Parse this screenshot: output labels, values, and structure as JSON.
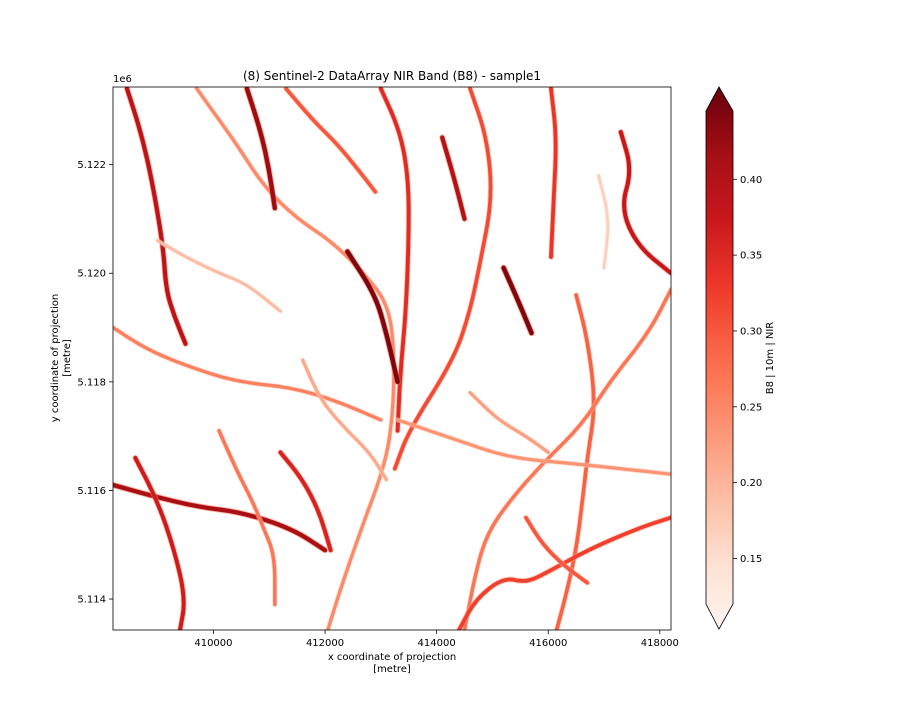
{
  "chart_data": {
    "type": "heatmap",
    "title": "(8) Sentinel-2 DataArray NIR Band (B8) - sample1",
    "xlabel": "x coordinate of projection",
    "xunit": "[metre]",
    "ylabel": "y coordinate of projection",
    "yunit": "[metre]",
    "y_offset_label": "1e6",
    "xlim": [
      408200,
      418200
    ],
    "ylim": [
      5113430,
      5123430
    ],
    "x_ticks": [
      410000,
      412000,
      414000,
      416000,
      418000
    ],
    "x_tick_labels": [
      "410000",
      "412000",
      "414000",
      "416000",
      "418000"
    ],
    "y_ticks": [
      5114000,
      5116000,
      5118000,
      5120000,
      5122000
    ],
    "y_tick_labels": [
      "5.114",
      "5.116",
      "5.118",
      "5.120",
      "5.122"
    ],
    "colorbar": {
      "label": "B8  | 10m | NIR",
      "colormap": "Reds",
      "range": [
        0.12,
        0.445
      ],
      "extend": "both",
      "ticks": [
        0.15,
        0.2,
        0.25,
        0.3,
        0.35,
        0.4
      ],
      "tick_labels": [
        "0.15",
        "0.20",
        "0.25",
        "0.30",
        "0.35",
        "0.40"
      ]
    },
    "channels": [
      {
        "points": [
          [
            408450,
            5123400
          ],
          [
            408700,
            5122600
          ],
          [
            408900,
            5121700
          ],
          [
            409100,
            5120500
          ],
          [
            409150,
            5119700
          ],
          [
            409300,
            5119200
          ],
          [
            409500,
            5118700
          ]
        ],
        "value": 0.38
      },
      {
        "points": [
          [
            408200,
            5119000
          ],
          [
            408800,
            5118600
          ],
          [
            409500,
            5118300
          ],
          [
            410400,
            5118000
          ],
          [
            411400,
            5117900
          ],
          [
            412200,
            5117650
          ],
          [
            413000,
            5117300
          ]
        ],
        "value": 0.26
      },
      {
        "points": [
          [
            409700,
            5123400
          ],
          [
            410400,
            5122400
          ],
          [
            410900,
            5121600
          ],
          [
            411500,
            5121000
          ],
          [
            412100,
            5120600
          ],
          [
            412700,
            5120000
          ],
          [
            413150,
            5119400
          ],
          [
            413250,
            5118400
          ],
          [
            413200,
            5117200
          ],
          [
            413050,
            5116400
          ],
          [
            412650,
            5115300
          ],
          [
            412250,
            5114100
          ],
          [
            412050,
            5113430
          ]
        ],
        "value": 0.25
      },
      {
        "points": [
          [
            411300,
            5123400
          ],
          [
            411800,
            5122800
          ],
          [
            412200,
            5122400
          ],
          [
            412600,
            5121900
          ],
          [
            412900,
            5121500
          ]
        ],
        "value": 0.3
      },
      {
        "points": [
          [
            413000,
            5123400
          ],
          [
            413350,
            5122600
          ],
          [
            413500,
            5121700
          ],
          [
            413500,
            5120600
          ],
          [
            413450,
            5119300
          ],
          [
            413350,
            5118200
          ],
          [
            413300,
            5117100
          ]
        ],
        "value": 0.34
      },
      {
        "points": [
          [
            414600,
            5123400
          ],
          [
            414900,
            5122500
          ],
          [
            415000,
            5121400
          ],
          [
            414800,
            5120300
          ],
          [
            414600,
            5119300
          ],
          [
            414300,
            5118400
          ],
          [
            413500,
            5117100
          ],
          [
            413250,
            5116400
          ]
        ],
        "value": 0.31
      },
      {
        "points": [
          [
            416050,
            5123400
          ],
          [
            416150,
            5122500
          ],
          [
            416100,
            5121400
          ],
          [
            416050,
            5120300
          ]
        ],
        "value": 0.33
      },
      {
        "points": [
          [
            416500,
            5119600
          ],
          [
            416700,
            5118800
          ],
          [
            416850,
            5117600
          ],
          [
            416700,
            5116600
          ],
          [
            416600,
            5115700
          ],
          [
            416500,
            5114900
          ],
          [
            416300,
            5114000
          ],
          [
            416150,
            5113430
          ]
        ],
        "value": 0.29
      },
      {
        "points": [
          [
            418200,
            5119700
          ],
          [
            417800,
            5118900
          ],
          [
            417100,
            5118000
          ],
          [
            416600,
            5117200
          ],
          [
            415900,
            5116500
          ],
          [
            415300,
            5115800
          ],
          [
            414900,
            5115200
          ],
          [
            414700,
            5114500
          ],
          [
            414500,
            5113430
          ]
        ],
        "value": 0.27
      },
      {
        "points": [
          [
            413300,
            5117300
          ],
          [
            414300,
            5116950
          ],
          [
            415300,
            5116600
          ],
          [
            416400,
            5116500
          ],
          [
            417300,
            5116400
          ],
          [
            418200,
            5116300
          ]
        ],
        "value": 0.24
      },
      {
        "points": [
          [
            408200,
            5116100
          ],
          [
            408900,
            5115900
          ],
          [
            409700,
            5115700
          ],
          [
            410500,
            5115600
          ],
          [
            411400,
            5115300
          ],
          [
            412000,
            5114900
          ]
        ],
        "value": 0.4
      },
      {
        "points": [
          [
            408600,
            5116600
          ],
          [
            409000,
            5115800
          ],
          [
            409300,
            5114900
          ],
          [
            409500,
            5114000
          ],
          [
            409400,
            5113430
          ]
        ],
        "value": 0.36
      },
      {
        "points": [
          [
            410100,
            5117100
          ],
          [
            410400,
            5116400
          ],
          [
            410700,
            5115800
          ],
          [
            410900,
            5115300
          ],
          [
            411100,
            5114800
          ],
          [
            411100,
            5113900
          ]
        ],
        "value": 0.27
      },
      {
        "points": [
          [
            414400,
            5113430
          ],
          [
            414700,
            5114000
          ],
          [
            415200,
            5114400
          ],
          [
            415600,
            5114300
          ],
          [
            416000,
            5114500
          ],
          [
            416700,
            5114900
          ],
          [
            417600,
            5115300
          ],
          [
            418200,
            5115500
          ]
        ],
        "value": 0.32
      },
      {
        "points": [
          [
            417300,
            5122600
          ],
          [
            417500,
            5121900
          ],
          [
            417300,
            5121200
          ],
          [
            417600,
            5120500
          ],
          [
            418200,
            5120000
          ]
        ],
        "value": 0.37
      },
      {
        "points": [
          [
            409000,
            5120600
          ],
          [
            409500,
            5120300
          ],
          [
            410100,
            5120000
          ],
          [
            410600,
            5119800
          ],
          [
            411200,
            5119300
          ]
        ],
        "value": 0.2
      },
      {
        "points": [
          [
            414600,
            5117800
          ],
          [
            415100,
            5117300
          ],
          [
            415600,
            5117000
          ],
          [
            416000,
            5116700
          ]
        ],
        "value": 0.23
      },
      {
        "points": [
          [
            411600,
            5118400
          ],
          [
            411900,
            5117700
          ],
          [
            412300,
            5117200
          ],
          [
            412800,
            5116700
          ],
          [
            413100,
            5116200
          ]
        ],
        "value": 0.22
      },
      {
        "points": [
          [
            415200,
            5120100
          ],
          [
            415500,
            5119400
          ],
          [
            415700,
            5118900
          ]
        ],
        "value": 0.43
      },
      {
        "points": [
          [
            412400,
            5120400
          ],
          [
            412900,
            5119600
          ],
          [
            413100,
            5118900
          ],
          [
            413300,
            5118000
          ]
        ],
        "value": 0.43
      },
      {
        "points": [
          [
            410600,
            5123400
          ],
          [
            410850,
            5122600
          ],
          [
            411000,
            5121900
          ],
          [
            411100,
            5121200
          ]
        ],
        "value": 0.41
      },
      {
        "points": [
          [
            414100,
            5122500
          ],
          [
            414300,
            5121800
          ],
          [
            414500,
            5121000
          ]
        ],
        "value": 0.39
      },
      {
        "points": [
          [
            416900,
            5121800
          ],
          [
            417100,
            5121000
          ],
          [
            417000,
            5120100
          ]
        ],
        "value": 0.18
      },
      {
        "points": [
          [
            411200,
            5116700
          ],
          [
            411600,
            5116200
          ],
          [
            411900,
            5115600
          ],
          [
            412100,
            5114900
          ]
        ],
        "value": 0.35
      },
      {
        "points": [
          [
            415600,
            5115500
          ],
          [
            415900,
            5115000
          ],
          [
            416300,
            5114600
          ],
          [
            416700,
            5114300
          ]
        ],
        "value": 0.3
      }
    ]
  }
}
